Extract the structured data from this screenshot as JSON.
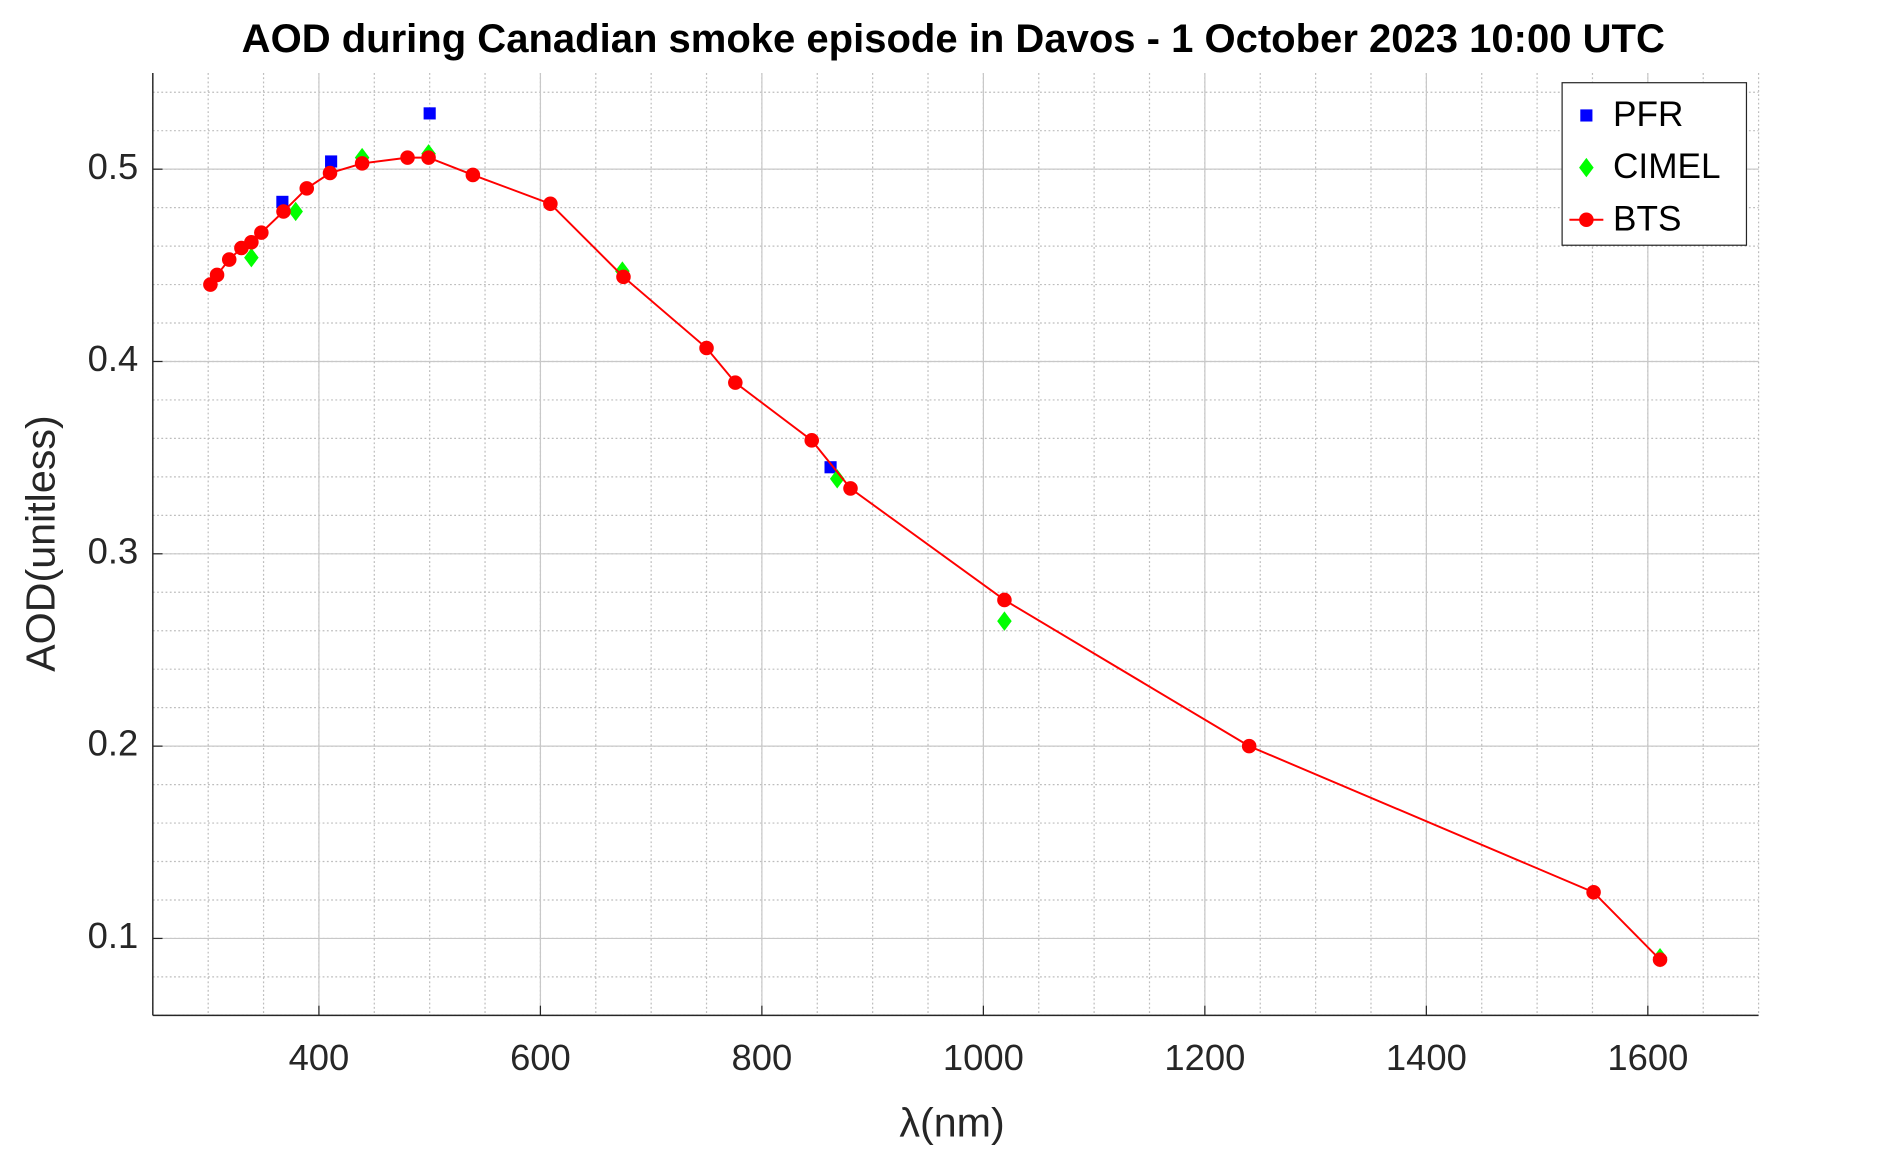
{
  "chart_data": {
    "type": "scatter",
    "title": "AOD during Canadian smoke episode in Davos - 1 October 2023 10:00 UTC",
    "xlabel": "λ(nm)",
    "ylabel": "AOD(unitless)",
    "xlim": [
      250,
      1700
    ],
    "xticks": [
      400,
      600,
      800,
      1000,
      1200,
      1400,
      1600
    ],
    "ylim": [
      0.06,
      0.55
    ],
    "yticks": [
      0.1,
      0.2,
      0.3,
      0.4,
      0.5
    ],
    "grid": true,
    "minor_grid": true,
    "legend": "upper right",
    "series": [
      {
        "name": "PFR",
        "color": "#0000ff",
        "marker": "square",
        "line": false,
        "x": [
          367,
          411,
          500,
          862
        ],
        "values": [
          0.483,
          0.504,
          0.529,
          0.345
        ]
      },
      {
        "name": "CIMEL",
        "color": "#00ff00",
        "marker": "diamond",
        "line": false,
        "x": [
          339,
          379,
          439,
          499,
          674,
          868,
          1019,
          1611
        ],
        "values": [
          0.454,
          0.478,
          0.506,
          0.508,
          0.447,
          0.339,
          0.265,
          0.09
        ]
      },
      {
        "name": "BTS",
        "color": "#ff0000",
        "marker": "circle",
        "line": true,
        "x": [
          302,
          308,
          319,
          330,
          339,
          348,
          368,
          389,
          410,
          439,
          480,
          499,
          539,
          609,
          675,
          750,
          776,
          845,
          880,
          1019,
          1240,
          1551,
          1611
        ],
        "values": [
          0.44,
          0.445,
          0.453,
          0.459,
          0.462,
          0.467,
          0.478,
          0.49,
          0.498,
          0.503,
          0.506,
          0.506,
          0.497,
          0.482,
          0.444,
          0.407,
          0.389,
          0.359,
          0.334,
          0.276,
          0.2,
          0.124,
          0.089
        ]
      }
    ]
  }
}
